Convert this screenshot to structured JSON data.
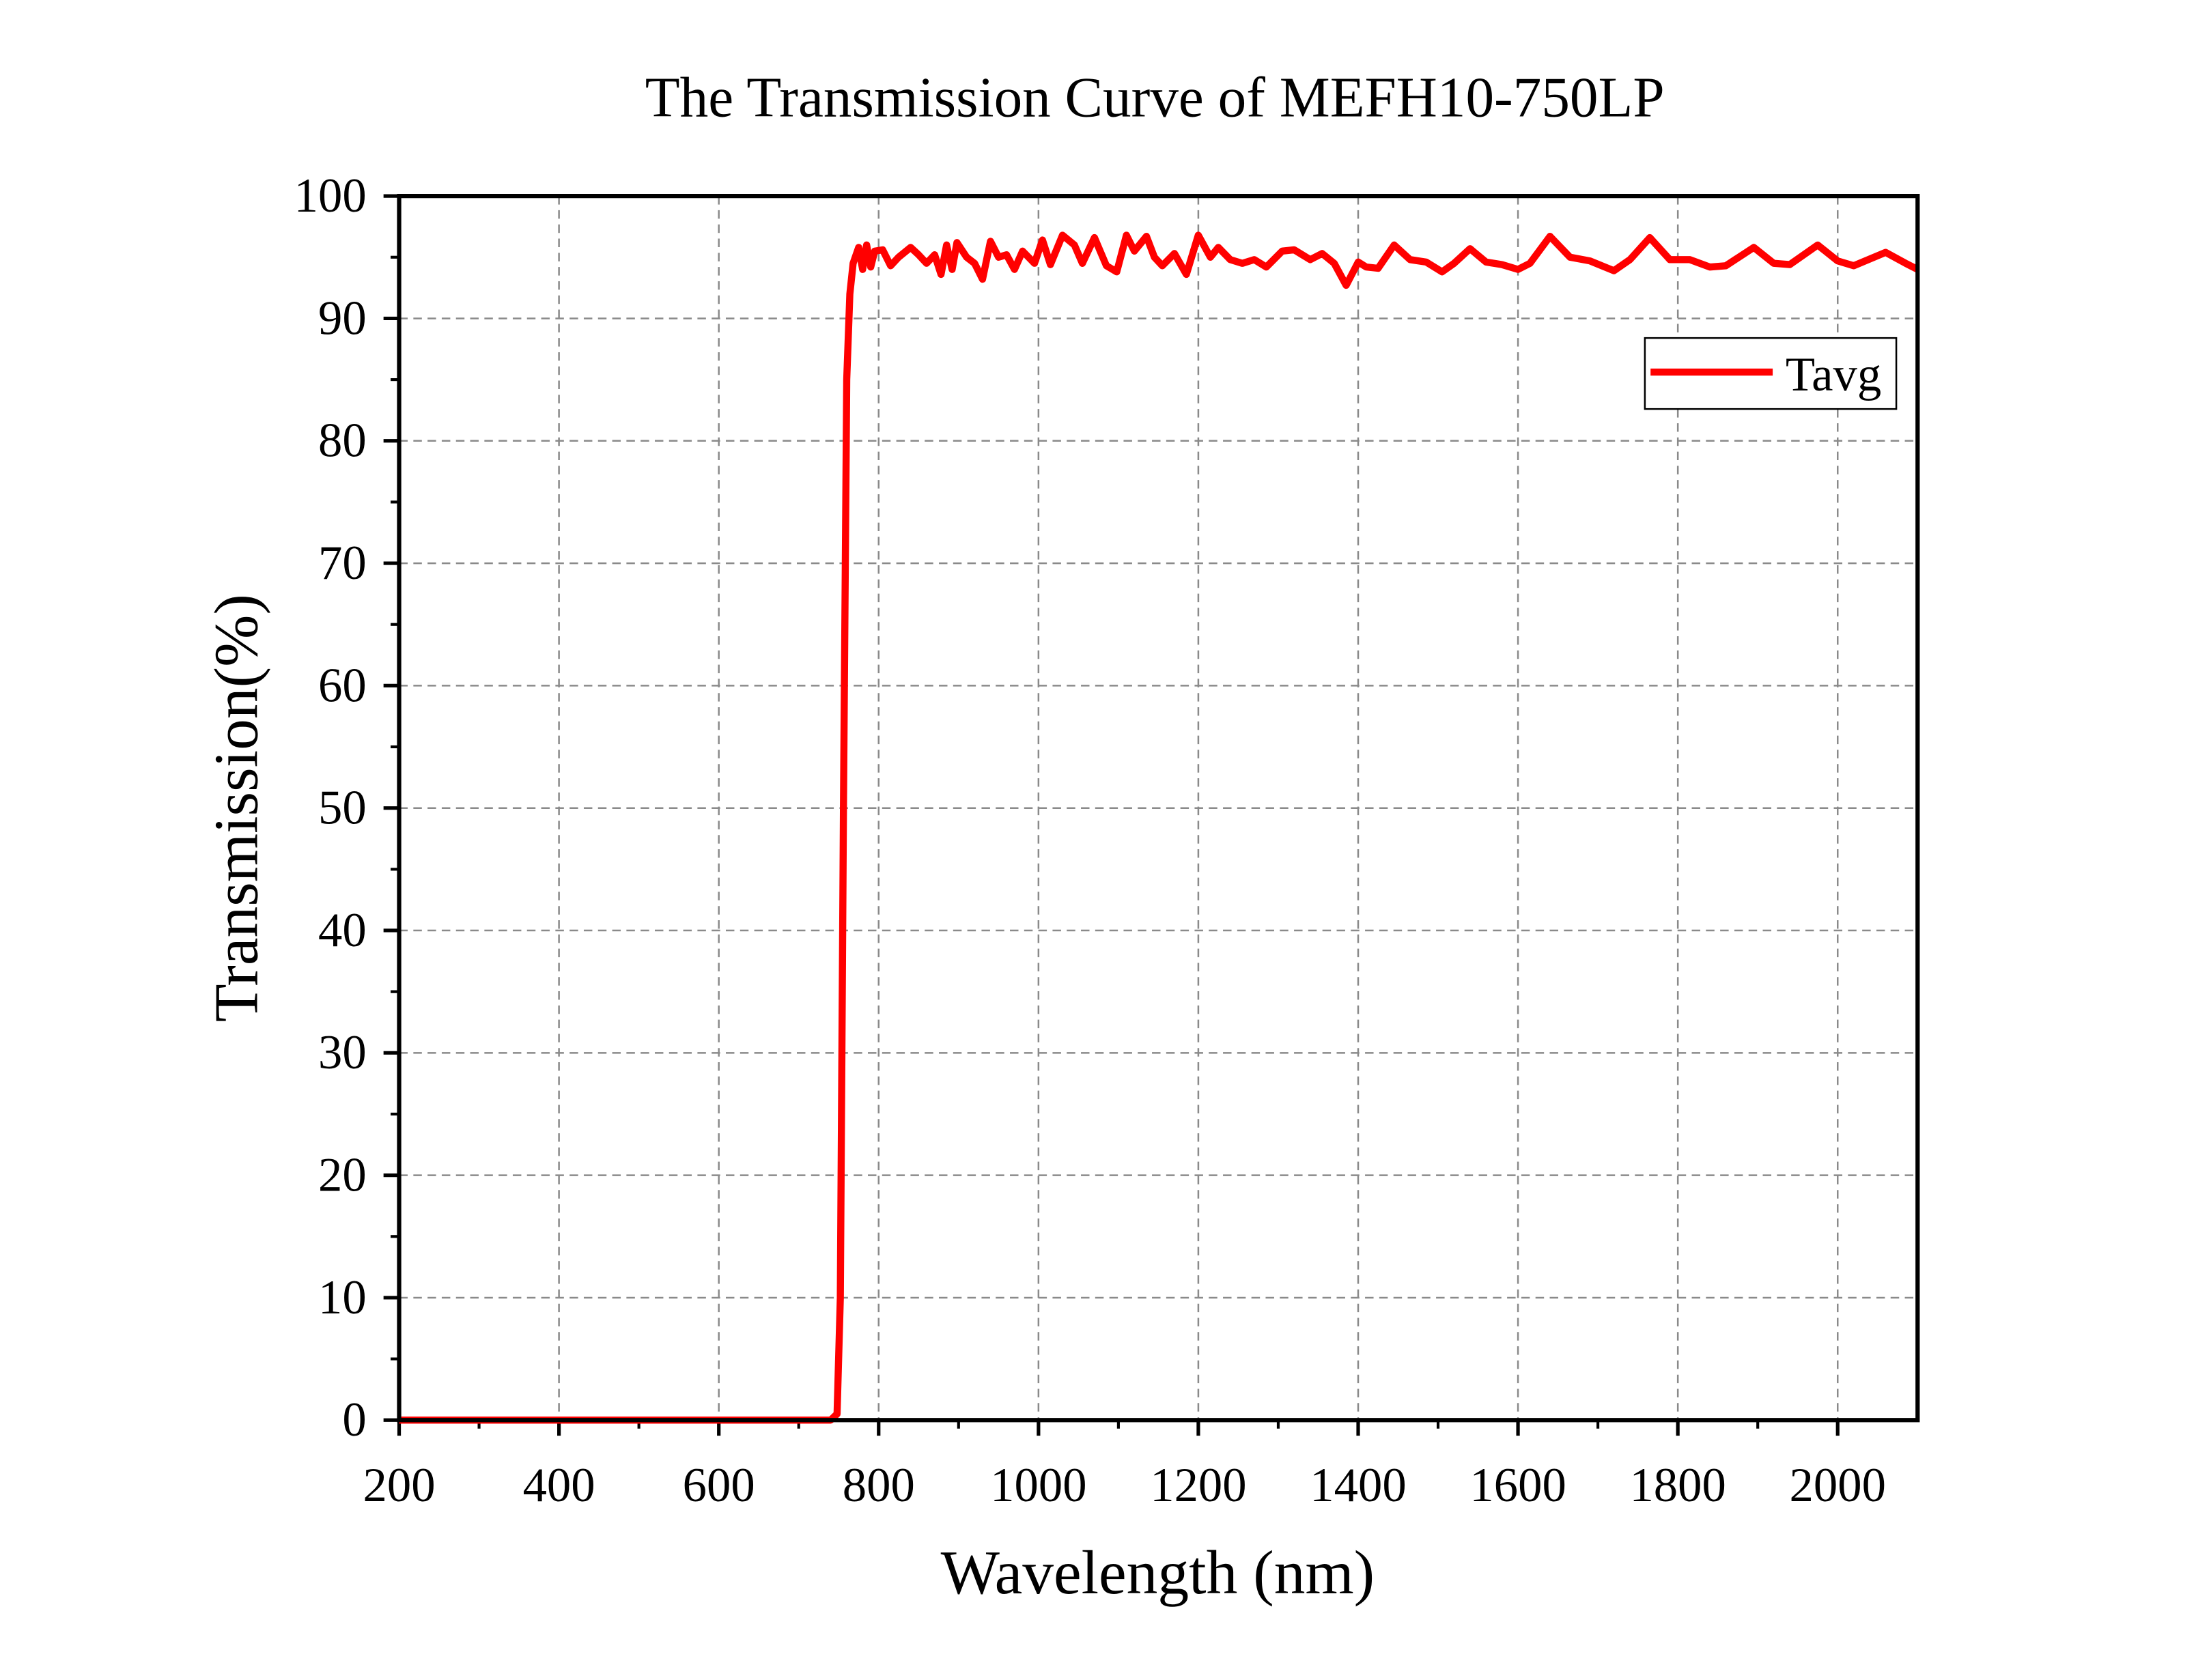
{
  "chart_data": {
    "type": "line",
    "title": "The Transmission Curve of MEFH10-750LP",
    "xlabel": "Wavelength (nm)",
    "ylabel": "Transmission(%)",
    "xlim": [
      200,
      2100
    ],
    "ylim": [
      0,
      100
    ],
    "xticks": [
      200,
      400,
      600,
      800,
      1000,
      1200,
      1400,
      1600,
      1800,
      2000
    ],
    "yticks": [
      0,
      10,
      20,
      30,
      40,
      50,
      60,
      70,
      80,
      90,
      100
    ],
    "grid": true,
    "legend": {
      "position": "top-right",
      "entries": [
        "Tavg"
      ]
    },
    "series": [
      {
        "name": "Tavg",
        "color": "#ff0000",
        "x": [
          200,
          740,
          748,
          752,
          756,
          760,
          764,
          768,
          775,
          780,
          785,
          790,
          795,
          805,
          815,
          825,
          840,
          850,
          860,
          870,
          878,
          885,
          892,
          898,
          910,
          920,
          930,
          940,
          950,
          960,
          970,
          980,
          995,
          1005,
          1015,
          1030,
          1045,
          1055,
          1070,
          1085,
          1098,
          1110,
          1120,
          1135,
          1145,
          1155,
          1170,
          1185,
          1200,
          1215,
          1225,
          1240,
          1255,
          1270,
          1285,
          1305,
          1320,
          1340,
          1355,
          1370,
          1385,
          1400,
          1410,
          1425,
          1445,
          1465,
          1485,
          1505,
          1520,
          1540,
          1560,
          1580,
          1600,
          1615,
          1640,
          1665,
          1690,
          1720,
          1740,
          1765,
          1790,
          1815,
          1840,
          1860,
          1895,
          1920,
          1940,
          1975,
          2000,
          2020,
          2060,
          2085,
          2100
        ],
        "y": [
          0,
          0,
          0.5,
          10,
          50,
          85,
          92,
          94.5,
          95.8,
          94,
          96,
          94.2,
          95.5,
          95.6,
          94.3,
          95,
          95.8,
          95.2,
          94.5,
          95.2,
          93.6,
          96,
          94,
          96.2,
          95,
          94.5,
          93.2,
          96.3,
          95,
          95.2,
          94,
          95.5,
          94.5,
          96.4,
          94.4,
          96.8,
          96,
          94.5,
          96.6,
          94.3,
          93.8,
          96.8,
          95.5,
          96.7,
          95,
          94.3,
          95.3,
          93.6,
          96.8,
          95,
          95.8,
          94.8,
          94.5,
          94.8,
          94.2,
          95.5,
          95.6,
          94.8,
          95.3,
          94.5,
          92.7,
          94.6,
          94.2,
          94.1,
          96,
          94.8,
          94.6,
          93.8,
          94.5,
          95.7,
          94.6,
          94.4,
          94,
          94.5,
          96.7,
          95,
          94.7,
          93.9,
          94.8,
          96.6,
          94.8,
          94.8,
          94.2,
          94.3,
          95.8,
          94.5,
          94.4,
          96,
          94.7,
          94.3,
          95.4,
          94.5,
          94
        ]
      }
    ]
  }
}
